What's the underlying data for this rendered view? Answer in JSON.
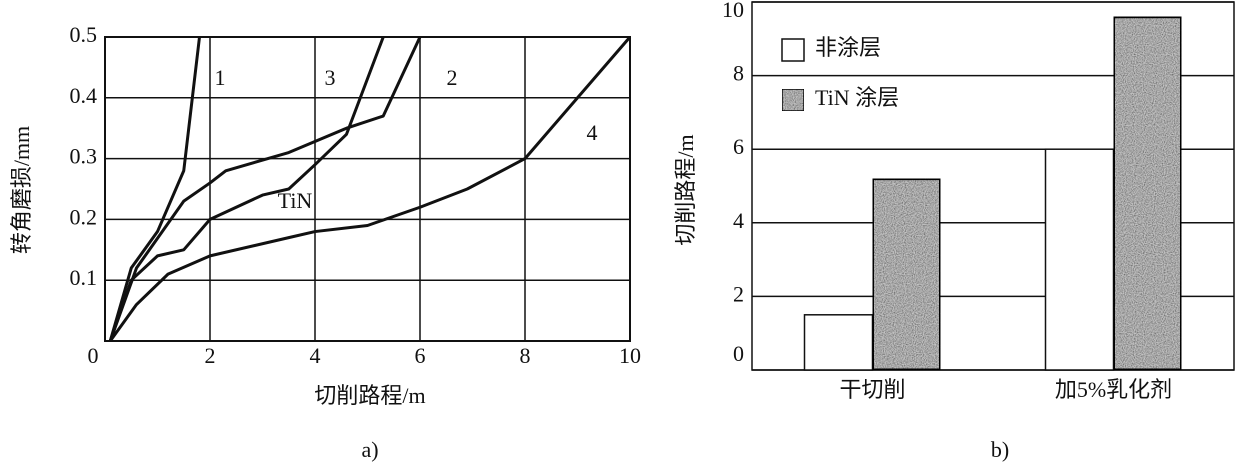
{
  "chart_data": [
    {
      "type": "line",
      "caption": "a)",
      "x_label": "切削路程/m",
      "y_label": "转角磨损/mm",
      "annotations": [
        "TiN"
      ],
      "xlim": [
        0,
        10
      ],
      "ylim": [
        0,
        0.5
      ],
      "xticks": [
        0,
        2,
        4,
        6,
        8,
        10
      ],
      "yticks": [
        0.1,
        0.2,
        0.3,
        0.4,
        0.5
      ],
      "grid": true,
      "series": [
        {
          "name": "1",
          "color": "#111111",
          "x": [
            0.1,
            0.5,
            1,
            1.5,
            1.8
          ],
          "values": [
            0,
            0.12,
            0.18,
            0.28,
            0.5
          ]
        },
        {
          "name": "2",
          "color": "#111111",
          "x": [
            0.1,
            0.6,
            1.5,
            2,
            2.3,
            3.5,
            4.6,
            5.3,
            6
          ],
          "values": [
            0,
            0.12,
            0.23,
            0.26,
            0.28,
            0.31,
            0.35,
            0.37,
            0.5
          ]
        },
        {
          "name": "3",
          "color": "#111111",
          "x": [
            0.1,
            0.5,
            1,
            1.5,
            2,
            3,
            3.5,
            4,
            4.6,
            5.3
          ],
          "values": [
            0,
            0.1,
            0.14,
            0.15,
            0.2,
            0.24,
            0.25,
            0.29,
            0.34,
            0.5
          ]
        },
        {
          "name": "4",
          "color": "#111111",
          "x": [
            0.1,
            0.6,
            1.2,
            2,
            3.5,
            4,
            5,
            6,
            6.9,
            8,
            10
          ],
          "values": [
            0,
            0.06,
            0.11,
            0.14,
            0.17,
            0.18,
            0.19,
            0.22,
            0.25,
            0.3,
            0.5
          ]
        }
      ]
    },
    {
      "type": "bar",
      "caption": "b)",
      "y_label": "切削路程/m",
      "categories": [
        "干切削",
        "加5%乳化剂"
      ],
      "ylim": [
        0,
        10
      ],
      "yticks": [
        0,
        2,
        4,
        6,
        8,
        10
      ],
      "grid": true,
      "series": [
        {
          "name": "非涂层",
          "color": "#ffffff",
          "values": [
            1.5,
            6
          ]
        },
        {
          "name": "TiN 涂层",
          "color": "#c4c4c4",
          "values": [
            5.2,
            9.6
          ]
        }
      ]
    }
  ]
}
